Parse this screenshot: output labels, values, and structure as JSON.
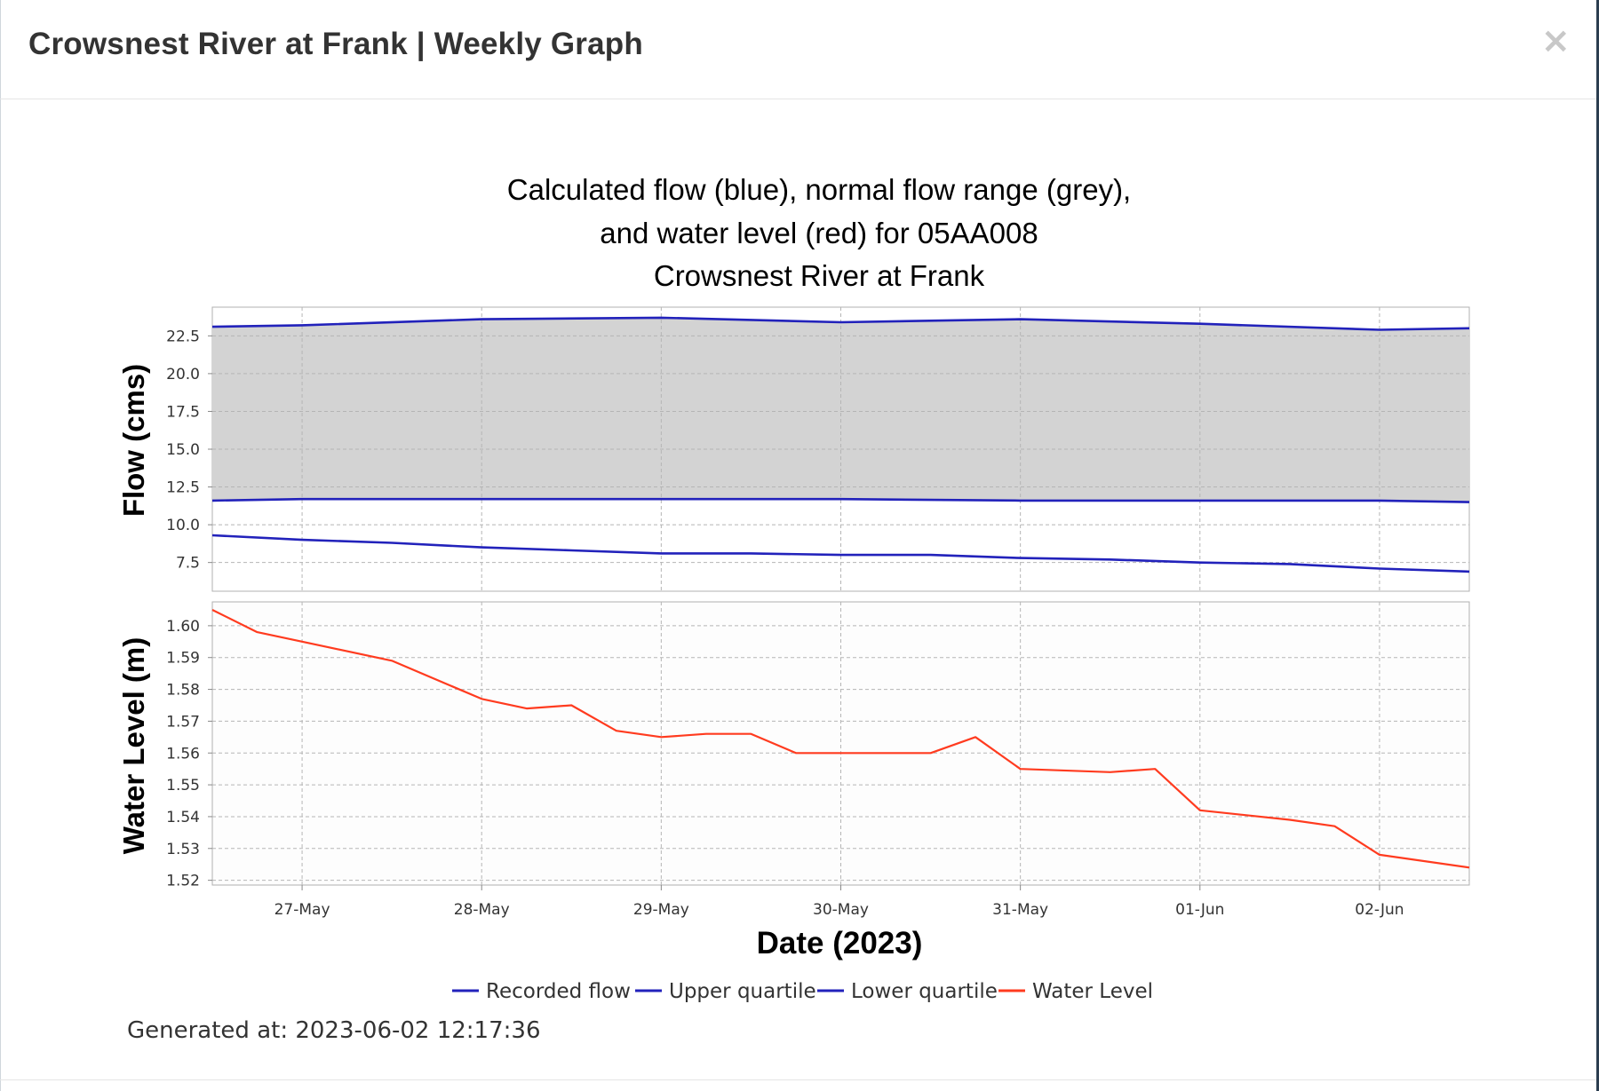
{
  "modal": {
    "title": "Crowsnest River at Frank | Weekly Graph",
    "close_label": "×"
  },
  "chart_data": {
    "type": "line",
    "title": [
      "Calculated flow (blue), normal flow range (grey),",
      "and water level (red) for 05AA008",
      "Crowsnest River at Frank"
    ],
    "xlabel": "Date (2023)",
    "x_ticks": [
      "27-May",
      "28-May",
      "29-May",
      "30-May",
      "31-May",
      "01-Jun",
      "02-Jun"
    ],
    "x_range": [
      "2023-05-26 12:00",
      "2023-06-02 12:00"
    ],
    "colors": {
      "flow": "#2222bb",
      "band": "#d3d3d3",
      "water_level": "#ff3b1f",
      "grid": "#b5b5b5"
    },
    "grid": true,
    "legend_position": "bottom",
    "legend": [
      "Recorded flow",
      "Upper quartile",
      "Lower quartile",
      "Water Level"
    ],
    "panels": [
      {
        "name": "flow",
        "ylabel": "Flow (cms)",
        "ylim": [
          5.6,
          24.4
        ],
        "y_ticks": [
          "7.5",
          "10.0",
          "12.5",
          "15.0",
          "17.5",
          "20.0",
          "22.5"
        ],
        "series": [
          {
            "name": "Upper quartile",
            "x": [
              "2023-05-26 12:00",
              "2023-05-27 00:00",
              "2023-05-28 00:00",
              "2023-05-29 00:00",
              "2023-05-30 00:00",
              "2023-05-31 00:00",
              "2023-06-01 00:00",
              "2023-06-02 00:00",
              "2023-06-02 12:00"
            ],
            "y": [
              23.1,
              23.2,
              23.6,
              23.7,
              23.4,
              23.6,
              23.3,
              22.9,
              23.0
            ]
          },
          {
            "name": "Lower quartile",
            "x": [
              "2023-05-26 12:00",
              "2023-05-27 00:00",
              "2023-05-28 00:00",
              "2023-05-29 00:00",
              "2023-05-30 00:00",
              "2023-05-31 00:00",
              "2023-06-01 00:00",
              "2023-06-02 00:00",
              "2023-06-02 12:00"
            ],
            "y": [
              11.6,
              11.7,
              11.7,
              11.7,
              11.7,
              11.6,
              11.6,
              11.6,
              11.5
            ]
          },
          {
            "name": "Recorded flow",
            "x": [
              "2023-05-26 12:00",
              "2023-05-27 00:00",
              "2023-05-27 12:00",
              "2023-05-28 00:00",
              "2023-05-28 12:00",
              "2023-05-29 00:00",
              "2023-05-29 12:00",
              "2023-05-30 00:00",
              "2023-05-30 12:00",
              "2023-05-31 00:00",
              "2023-05-31 12:00",
              "2023-06-01 00:00",
              "2023-06-01 12:00",
              "2023-06-02 00:00",
              "2023-06-02 12:00"
            ],
            "y": [
              9.3,
              9.0,
              8.8,
              8.5,
              8.3,
              8.1,
              8.1,
              8.0,
              8.0,
              7.8,
              7.7,
              7.5,
              7.4,
              7.1,
              6.9
            ]
          }
        ]
      },
      {
        "name": "water_level",
        "ylabel": "Water Level (m)",
        "ylim": [
          1.5185,
          1.6075
        ],
        "y_ticks": [
          "1.52",
          "1.53",
          "1.54",
          "1.55",
          "1.56",
          "1.57",
          "1.58",
          "1.59",
          "1.60"
        ],
        "series": [
          {
            "name": "Water Level",
            "x": [
              "2023-05-26 12:00",
              "2023-05-26 18:00",
              "2023-05-27 00:00",
              "2023-05-27 12:00",
              "2023-05-28 00:00",
              "2023-05-28 06:00",
              "2023-05-28 12:00",
              "2023-05-28 18:00",
              "2023-05-29 00:00",
              "2023-05-29 06:00",
              "2023-05-29 12:00",
              "2023-05-29 18:00",
              "2023-05-30 00:00",
              "2023-05-30 12:00",
              "2023-05-30 18:00",
              "2023-05-31 00:00",
              "2023-05-31 12:00",
              "2023-05-31 18:00",
              "2023-06-01 00:00",
              "2023-06-01 12:00",
              "2023-06-01 18:00",
              "2023-06-02 00:00",
              "2023-06-02 12:00"
            ],
            "y": [
              1.605,
              1.598,
              1.595,
              1.589,
              1.577,
              1.574,
              1.575,
              1.567,
              1.565,
              1.566,
              1.566,
              1.56,
              1.56,
              1.56,
              1.565,
              1.555,
              1.554,
              1.555,
              1.542,
              1.539,
              1.537,
              1.528,
              1.524
            ]
          }
        ]
      }
    ]
  },
  "generated_at": "Generated at: 2023-06-02 12:17:36"
}
